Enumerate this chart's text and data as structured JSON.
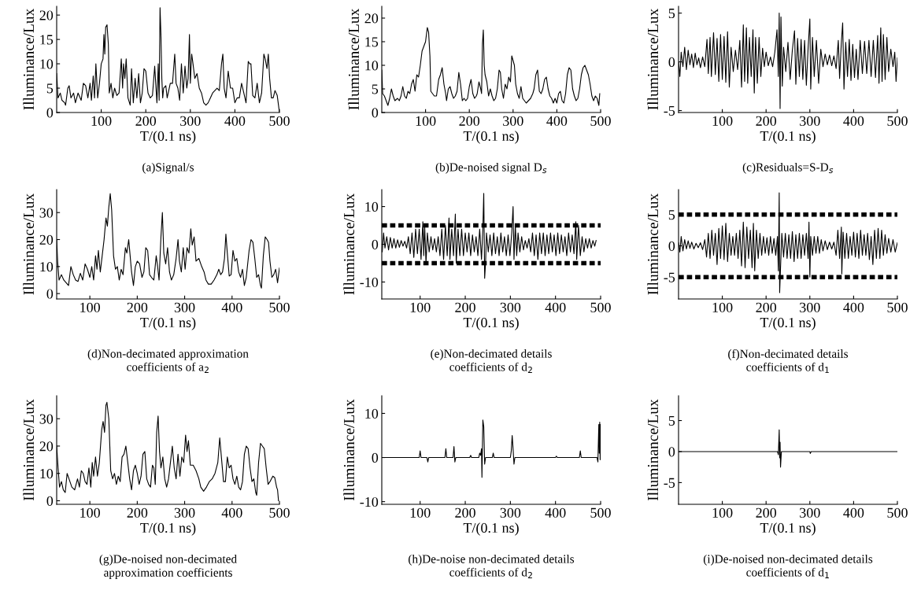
{
  "chart_data": [
    {
      "type": "line",
      "title": "(a)Signal/s",
      "xlabel": "T/(0.1 ns)",
      "ylabel": "Illuminance/Lux",
      "color": "#000000",
      "xlim": [
        0,
        500
      ],
      "ylim": [
        0,
        21.8
      ],
      "xticks": [
        100,
        200,
        300,
        400,
        500
      ],
      "yticks": [
        0,
        5,
        10,
        15,
        20
      ],
      "x": [
        0,
        3,
        8,
        12,
        18,
        20,
        25,
        28,
        32,
        38,
        42,
        48,
        55,
        60,
        65,
        70,
        75,
        78,
        82,
        85,
        88,
        92,
        96,
        100,
        104,
        106,
        108,
        110,
        113,
        116,
        118,
        122,
        126,
        130,
        135,
        140,
        145,
        148,
        150,
        153,
        156,
        160,
        165,
        168,
        172,
        176,
        180,
        184,
        188,
        192,
        196,
        200,
        205,
        210,
        215,
        220,
        225,
        228,
        230,
        232,
        234,
        236,
        238,
        240,
        245,
        248,
        255,
        260,
        265,
        268,
        272,
        276,
        280,
        284,
        288,
        292,
        295,
        298,
        300,
        303,
        306,
        310,
        315,
        320,
        325,
        330,
        335,
        340,
        345,
        350,
        355,
        360,
        365,
        370,
        373,
        376,
        380,
        385,
        390,
        395,
        400,
        405,
        410,
        415,
        420,
        425,
        430,
        433,
        436,
        440,
        445,
        450,
        455,
        460,
        465,
        468,
        472,
        475,
        478,
        482,
        486,
        490,
        495,
        500
      ],
      "values": [
        8,
        3,
        4,
        2.5,
        2,
        1.5,
        5,
        5.5,
        3,
        4,
        2,
        4,
        2.5,
        6,
        5.5,
        3,
        6,
        2.5,
        7.5,
        3,
        10,
        3,
        6,
        10,
        11,
        16,
        12,
        17.5,
        18,
        14,
        4,
        6,
        3,
        5,
        3.5,
        4,
        11,
        5,
        10,
        7,
        11,
        3,
        1.5,
        9,
        2,
        7,
        3,
        8,
        2,
        4,
        9,
        8.5,
        4,
        3,
        3.5,
        9.5,
        2,
        10,
        2.5,
        21.5,
        16,
        7,
        3,
        5,
        5.5,
        3,
        6,
        6,
        12,
        6,
        5,
        2.5,
        10,
        4,
        9.5,
        5,
        7,
        16,
        6,
        12,
        10,
        7,
        8,
        5,
        4,
        2,
        1.5,
        2,
        3,
        4,
        4.5,
        5,
        4.5,
        10,
        12,
        5,
        3,
        8.5,
        5,
        5,
        2,
        3,
        3,
        6,
        4,
        2,
        10.5,
        10,
        10,
        3.5,
        3,
        6,
        2,
        4,
        12,
        11,
        9,
        12,
        7,
        3,
        3,
        4.5,
        3.5,
        0
      ]
    },
    {
      "type": "line",
      "title": "(b)De-noised signal D$_{s}$",
      "xlabel": "T/(0.1 ns)",
      "ylabel": "Illuminance/Lux",
      "color": "#000000",
      "xlim": [
        0,
        500
      ],
      "ylim": [
        0,
        22.5
      ],
      "xticks": [
        100,
        200,
        300,
        400,
        500
      ],
      "yticks": [
        0,
        5,
        10,
        15,
        20
      ],
      "x": [
        0,
        2,
        6,
        10,
        14,
        18,
        22,
        26,
        30,
        36,
        40,
        44,
        48,
        52,
        56,
        60,
        64,
        68,
        72,
        76,
        80,
        84,
        88,
        92,
        96,
        100,
        104,
        107,
        110,
        112,
        116,
        120,
        125,
        130,
        134,
        138,
        142,
        146,
        148,
        152,
        156,
        160,
        164,
        168,
        172,
        176,
        180,
        184,
        188,
        192,
        196,
        200,
        204,
        208,
        212,
        216,
        218,
        222,
        226,
        228,
        230,
        232,
        234,
        236,
        240,
        244,
        248,
        252,
        256,
        260,
        264,
        268,
        271,
        274,
        278,
        282,
        286,
        290,
        294,
        297,
        300,
        303,
        306,
        310,
        314,
        318,
        322,
        326,
        330,
        335,
        340,
        345,
        348,
        352,
        356,
        360,
        364,
        368,
        372,
        376,
        380,
        384,
        388,
        392,
        396,
        400,
        404,
        408,
        412,
        416,
        420,
        424,
        428,
        432,
        436,
        440,
        444,
        448,
        452,
        456,
        460,
        464,
        468,
        472,
        476,
        480,
        484,
        488,
        492,
        496,
        498
      ],
      "values": [
        9,
        4,
        3.5,
        2.5,
        1.5,
        3,
        5,
        3.5,
        2.5,
        3,
        2.5,
        3.5,
        5.5,
        3.5,
        3,
        4.5,
        4,
        6,
        7,
        4.5,
        8,
        7.5,
        10,
        13,
        14,
        15,
        18,
        17,
        12,
        4.5,
        4,
        3.5,
        3.5,
        7,
        8,
        9.5,
        6,
        4,
        2.5,
        5,
        5.5,
        4,
        3,
        3.5,
        4.5,
        8.5,
        6,
        2.5,
        3,
        2.5,
        3,
        5.5,
        7,
        4,
        3,
        3.5,
        4,
        6.5,
        5,
        4,
        14.5,
        17.5,
        10,
        8,
        6.5,
        3.5,
        5,
        3.5,
        2.5,
        3,
        5,
        9,
        8.5,
        5,
        3,
        6,
        5,
        7.5,
        6.5,
        12,
        11,
        10,
        6,
        4,
        3,
        5.5,
        3,
        2.5,
        2,
        2.5,
        3,
        4,
        5,
        8,
        9,
        4.5,
        4,
        5,
        7,
        7.5,
        5,
        3.5,
        3,
        2,
        3,
        2,
        4,
        4.5,
        2.5,
        2,
        4,
        8,
        9.5,
        9,
        5,
        3.5,
        2.5,
        3,
        5,
        8,
        9.5,
        10,
        9,
        8,
        6,
        3.5,
        2.5,
        3.5,
        3,
        1.5,
        4
      ]
    },
    {
      "type": "line",
      "title": "(c)Residuals=S-D$_{s}$",
      "xlabel": "T/(0.1 ns)",
      "ylabel": "Illuminance/Lux",
      "color": "#000000",
      "xlim": [
        0,
        500
      ],
      "ylim": [
        -5.2,
        5.7
      ],
      "xticks": [
        100,
        200,
        300,
        400,
        500
      ],
      "yticks": [
        -5,
        0,
        5
      ],
      "x": [
        0,
        3,
        6,
        10,
        14,
        18,
        22,
        26,
        30,
        34,
        38,
        42,
        46,
        50,
        55,
        60,
        65,
        68,
        72,
        75,
        80,
        84,
        88,
        92,
        96,
        100,
        104,
        108,
        112,
        116,
        120,
        125,
        130,
        135,
        140,
        144,
        148,
        151,
        155,
        158,
        162,
        166,
        170,
        173,
        176,
        180,
        184,
        188,
        192,
        196,
        200,
        205,
        210,
        215,
        220,
        225,
        228,
        230,
        232,
        234,
        237,
        240,
        245,
        250,
        255,
        260,
        265,
        268,
        272,
        276,
        280,
        284,
        288,
        292,
        296,
        300,
        302,
        306,
        310,
        315,
        320,
        325,
        330,
        335,
        340,
        345,
        350,
        355,
        360,
        365,
        368,
        372,
        375,
        378,
        382,
        386,
        390,
        394,
        398,
        402,
        406,
        410,
        415,
        420,
        425,
        430,
        435,
        440,
        445,
        450,
        455,
        458,
        462,
        465,
        468,
        472,
        476,
        480,
        485,
        490,
        494,
        497,
        500
      ],
      "values": [
        0,
        -1.5,
        1,
        -0.5,
        1.5,
        -0.8,
        1.2,
        -0.3,
        0.8,
        -0.6,
        0.9,
        -0.3,
        0.4,
        -0.6,
        0.5,
        -0.5,
        2.3,
        -1.2,
        2.5,
        -1.5,
        3,
        -1.3,
        2.4,
        -2,
        2.8,
        -1.8,
        2.6,
        -2.1,
        3.1,
        -2.6,
        1.5,
        -1,
        1.2,
        -0.8,
        2.2,
        -2.6,
        3.8,
        -2,
        3.5,
        -2.2,
        2.5,
        -1.5,
        3.3,
        -3.2,
        2.5,
        -2.2,
        2.5,
        -1.5,
        1.4,
        -0.5,
        1,
        -0.4,
        0.5,
        -0.5,
        1,
        3.3,
        -1.5,
        5,
        -4.8,
        4.6,
        -2.5,
        1.5,
        -1,
        2,
        -1.8,
        1.2,
        3.2,
        -2.3,
        2.4,
        -1.5,
        2.3,
        -1.8,
        2.2,
        -2.4,
        1.4,
        4.4,
        -2.8,
        2.5,
        -1.5,
        2.2,
        -2.2,
        1.3,
        -0.5,
        0.8,
        -0.3,
        0.7,
        -0.4,
        0.6,
        -0.7,
        2.2,
        -1.7,
        2,
        4,
        -2.8,
        2,
        -1.5,
        2.3,
        -1.9,
        1.8,
        -1.6,
        1.3,
        -1.8,
        2.2,
        -1.2,
        2.1,
        -1.2,
        2.2,
        -1.5,
        2.2,
        -1.6,
        2.7,
        -2.2,
        3.5,
        -2,
        2.8,
        -1.8,
        2.5,
        -1,
        1.3,
        -0.5,
        1,
        -2,
        0.4
      ]
    },
    {
      "type": "line",
      "title": "(d)Non-decimated approximation\ncoefficients of a$_{2}$",
      "xlabel": "T/(0.1 ns)",
      "ylabel": "Illuminance/Lux",
      "color": "#000000",
      "xlim": [
        30,
        500
      ],
      "ylim": [
        -2,
        38.5
      ],
      "xticks": [
        100,
        200,
        300,
        400,
        500
      ],
      "yticks": [
        0,
        10,
        20,
        30
      ],
      "x": [
        30,
        32,
        35,
        40,
        45,
        50,
        55,
        60,
        65,
        70,
        75,
        80,
        85,
        90,
        95,
        100,
        104,
        108,
        112,
        115,
        118,
        122,
        126,
        130,
        134,
        137,
        140,
        143,
        146,
        150,
        154,
        158,
        162,
        166,
        170,
        175,
        178,
        182,
        185,
        188,
        192,
        196,
        200,
        205,
        210,
        214,
        218,
        222,
        226,
        230,
        235,
        240,
        243,
        246,
        250,
        253,
        256,
        260,
        264,
        268,
        272,
        277,
        282,
        286,
        289,
        293,
        297,
        301,
        305,
        309,
        313,
        316,
        320,
        324,
        330,
        336,
        341,
        345,
        350,
        356,
        362,
        368,
        372,
        376,
        380,
        384,
        387,
        390,
        394,
        398,
        402,
        406,
        410,
        414,
        418,
        422,
        426,
        430,
        436,
        440,
        444,
        448,
        452,
        456,
        460,
        462,
        466,
        470,
        474,
        477,
        480,
        484,
        488,
        492,
        496,
        500
      ],
      "values": [
        20,
        12,
        5,
        7,
        5,
        4,
        3,
        10,
        7,
        5,
        4.5,
        7.5,
        5,
        11,
        9,
        6,
        10,
        5,
        14,
        9,
        16,
        8,
        14,
        20,
        28,
        25,
        32,
        37,
        31,
        14,
        9,
        10,
        5,
        9,
        7,
        17,
        15,
        20,
        14,
        8,
        3,
        10,
        12,
        11,
        6,
        8,
        17,
        16,
        7,
        6,
        5,
        14,
        10,
        5,
        21,
        30,
        15,
        11,
        17,
        8,
        5,
        7,
        13,
        20,
        12,
        8,
        17,
        9,
        17,
        15,
        24,
        18,
        21,
        12,
        13,
        10,
        8,
        5,
        3.5,
        3.5,
        5,
        7,
        9,
        7,
        8,
        13,
        22,
        15,
        6.5,
        7,
        16,
        12,
        13,
        8,
        6,
        9,
        3,
        6,
        16,
        20,
        19,
        13,
        6,
        7,
        3,
        2,
        14,
        21,
        20,
        19,
        12,
        6,
        7,
        9,
        4,
        9.5
      ]
    },
    {
      "type": "line",
      "title": "(e)Non-decimated details\ncoefficients of d$_{2}$",
      "xlabel": "T/(0.1 ns)",
      "ylabel": "Illuminance/Lux",
      "color": "#000000",
      "xlim": [
        15,
        500
      ],
      "ylim": [
        -14.5,
        14.5
      ],
      "xticks": [
        100,
        200,
        300,
        400,
        500
      ],
      "yticks": [
        -10,
        0,
        10
      ],
      "ref_lines": [
        {
          "axis": "y",
          "value": 5,
          "color": "#000000",
          "line_style": "dashed"
        },
        {
          "axis": "y",
          "value": -5,
          "color": "#000000",
          "line_style": "dashed"
        }
      ],
      "x": [
        16,
        19,
        22,
        26,
        30,
        34,
        38,
        42,
        46,
        50,
        54,
        58,
        62,
        66,
        70,
        74,
        78,
        82,
        86,
        90,
        94,
        98,
        102,
        106,
        108,
        110,
        113,
        116,
        120,
        124,
        128,
        132,
        136,
        140,
        144,
        148,
        152,
        156,
        160,
        164,
        166,
        170,
        174,
        178,
        180,
        184,
        188,
        192,
        196,
        200,
        204,
        208,
        212,
        216,
        220,
        224,
        228,
        232,
        236,
        239,
        241,
        243,
        245,
        247,
        251,
        255,
        259,
        263,
        267,
        271,
        275,
        279,
        283,
        287,
        291,
        295,
        299,
        303,
        306,
        308,
        311,
        314,
        317,
        321,
        325,
        329,
        333,
        337,
        341,
        345,
        349,
        353,
        357,
        361,
        365,
        369,
        373,
        377,
        381,
        385,
        389,
        393,
        397,
        401,
        405,
        409,
        413,
        417,
        421,
        425,
        429,
        433,
        437,
        441,
        445,
        447,
        451,
        455,
        459,
        463,
        467,
        471,
        475,
        479,
        483,
        487,
        490
      ],
      "values": [
        -2,
        3,
        -1,
        2,
        -1.5,
        1.8,
        -1,
        1.5,
        -1,
        1.2,
        -0.8,
        1,
        -0.5,
        0.8,
        -1,
        2,
        -2.5,
        3,
        -3.5,
        4,
        -2.5,
        4,
        -4,
        6,
        -3,
        5,
        -5,
        3,
        -2,
        2,
        -1.5,
        1.5,
        -2,
        2,
        -3,
        4,
        -4,
        5,
        -3,
        7,
        -4,
        4,
        -3,
        8,
        -5,
        4,
        -3,
        4,
        -3,
        3,
        -2,
        3,
        -3,
        2.5,
        -2,
        2,
        -3,
        4,
        -4,
        4,
        13.5,
        -9,
        -5,
        3,
        -2,
        2.5,
        -3,
        3,
        -2.5,
        2,
        -3,
        3,
        -2,
        2,
        -3,
        2.5,
        -3,
        3,
        10,
        -4,
        5,
        -3,
        3,
        -2,
        2,
        -1.5,
        1,
        -1,
        1.5,
        -2,
        3,
        -3,
        2.5,
        -4,
        3,
        -2.5,
        3,
        -3,
        2.5,
        -2.5,
        3,
        -2,
        2.5,
        -3,
        3,
        -2.5,
        2.5,
        -2,
        2,
        -3,
        3,
        -2,
        2.5,
        -2.5,
        6,
        -4,
        5,
        -3,
        2,
        -2,
        1.5,
        -1,
        1.5,
        -1,
        1,
        -0.5,
        1
      ]
    },
    {
      "type": "line",
      "title": "(f)Non-decimated details\ncoefficients of d$_{1}$",
      "xlabel": "T/(0.1 ns)",
      "ylabel": "Illuminance/Lux",
      "color": "#000000",
      "xlim": [
        0,
        500
      ],
      "ylim": [
        -8.5,
        9
      ],
      "xticks": [
        100,
        200,
        300,
        400,
        500
      ],
      "yticks": [
        -5,
        0,
        5
      ],
      "ref_lines": [
        {
          "axis": "y",
          "value": 5,
          "color": "#000000",
          "line_style": "dashed"
        },
        {
          "axis": "y",
          "value": -5,
          "color": "#000000",
          "line_style": "dashed"
        }
      ],
      "x": [
        0,
        3,
        6,
        10,
        14,
        18,
        22,
        26,
        30,
        35,
        40,
        45,
        50,
        55,
        60,
        64,
        68,
        72,
        76,
        80,
        84,
        88,
        92,
        96,
        100,
        104,
        108,
        112,
        116,
        120,
        124,
        128,
        132,
        136,
        140,
        144,
        148,
        152,
        156,
        160,
        164,
        168,
        171,
        174,
        178,
        182,
        186,
        190,
        194,
        198,
        202,
        206,
        210,
        214,
        218,
        222,
        226,
        228,
        230,
        231,
        233,
        236,
        240,
        244,
        248,
        252,
        256,
        260,
        264,
        268,
        272,
        276,
        280,
        284,
        288,
        292,
        296,
        298,
        300,
        302,
        306,
        310,
        314,
        318,
        322,
        326,
        330,
        335,
        340,
        345,
        350,
        355,
        360,
        364,
        368,
        372,
        373,
        376,
        380,
        384,
        388,
        392,
        396,
        400,
        404,
        408,
        412,
        416,
        420,
        424,
        428,
        432,
        436,
        440,
        444,
        448,
        452,
        456,
        460,
        464,
        468,
        472,
        476,
        480,
        485,
        490,
        495,
        500
      ],
      "values": [
        0.5,
        -1,
        1.5,
        -0.8,
        1,
        -0.5,
        0.8,
        -0.4,
        0.6,
        -0.5,
        0.4,
        -0.3,
        0.5,
        -0.6,
        1,
        -1.8,
        2,
        -2,
        2.5,
        -1.5,
        2,
        -3,
        2.8,
        -2,
        3.2,
        -2.2,
        3.6,
        -2.5,
        2,
        -1.5,
        1.5,
        -1.5,
        2,
        -2,
        2.5,
        -3.2,
        3.8,
        -3.5,
        3,
        -2,
        2.5,
        -3.5,
        3.6,
        -4,
        2.5,
        -2,
        2,
        -1.5,
        1.5,
        -1.2,
        1.3,
        -1.5,
        1.5,
        -1.2,
        1.2,
        -1.5,
        1.5,
        -4,
        8.5,
        -7.5,
        -3.5,
        2,
        -1.8,
        2,
        -2,
        1.8,
        -2,
        2.3,
        -2.5,
        1.8,
        -2,
        2,
        -2,
        1.8,
        -1.5,
        2,
        -2,
        3.8,
        -5,
        1.5,
        -1.5,
        1.5,
        -1.2,
        1.5,
        -1.2,
        1,
        -0.8,
        0.8,
        -0.6,
        0.6,
        -0.5,
        0.6,
        -1.5,
        2.5,
        -2,
        3,
        -4.5,
        2.2,
        -2,
        2,
        -2,
        1.5,
        -1.5,
        2.2,
        -1.8,
        2,
        -2,
        2.5,
        -1.5,
        1.8,
        -1.5,
        2,
        -2.2,
        1.5,
        -3,
        2.5,
        -2,
        2.8,
        -2,
        2.5,
        -1.5,
        1.8,
        -1.2,
        1.2,
        -1,
        1,
        -1,
        0.5
      ]
    },
    {
      "type": "line",
      "title": "(g)De-noised non-decimated\napproximation coefficients",
      "xlabel": "T/(0.1 ns)",
      "ylabel": "Illuminance/Lux",
      "color": "#000000",
      "xlim": [
        30,
        500
      ],
      "ylim": [
        -1.3,
        38.4
      ],
      "xticks": [
        100,
        200,
        300,
        400,
        500
      ],
      "yticks": [
        0,
        10,
        20,
        30
      ],
      "x": [
        30,
        33,
        36,
        40,
        44,
        48,
        52,
        56,
        62,
        68,
        74,
        78,
        82,
        86,
        90,
        94,
        98,
        102,
        105,
        108,
        112,
        116,
        120,
        125,
        128,
        131,
        134,
        136,
        140,
        144,
        148,
        152,
        156,
        160,
        164,
        168,
        172,
        176,
        180,
        184,
        188,
        192,
        196,
        200,
        204,
        208,
        212,
        216,
        220,
        224,
        228,
        232,
        235,
        238,
        241,
        244,
        247,
        250,
        254,
        258,
        262,
        266,
        270,
        274,
        278,
        282,
        286,
        290,
        294,
        298,
        302,
        305,
        308,
        312,
        318,
        324,
        330,
        334,
        340,
        346,
        352,
        358,
        364,
        370,
        374,
        378,
        382,
        386,
        390,
        394,
        398,
        402,
        406,
        410,
        414,
        418,
        422,
        426,
        430,
        434,
        438,
        442,
        446,
        450,
        452,
        456,
        460,
        464,
        468,
        472,
        476,
        480,
        486,
        490,
        494,
        496,
        498
      ],
      "values": [
        20,
        12,
        5,
        7,
        4,
        3,
        10,
        8,
        5,
        4,
        8,
        5,
        11,
        10,
        7,
        6,
        12,
        5,
        14,
        9,
        16,
        9,
        14,
        26,
        29,
        25,
        35,
        36,
        30,
        11,
        8,
        10,
        6,
        9,
        7,
        16,
        17,
        20,
        14,
        8,
        4,
        11,
        13,
        10,
        6,
        9,
        17,
        18,
        8,
        6,
        5,
        13,
        12,
        6,
        25,
        31,
        18,
        12,
        16,
        8,
        5,
        8,
        14,
        20,
        12,
        8,
        17,
        9,
        16,
        14,
        24,
        18,
        22,
        13,
        13,
        11,
        8,
        5,
        3.5,
        5,
        7,
        8,
        10,
        14,
        23,
        15,
        7,
        7,
        16,
        12,
        13,
        8,
        6,
        9,
        5,
        4,
        7,
        17,
        20,
        19,
        12,
        7,
        8,
        3,
        2,
        14,
        21,
        20,
        19,
        12,
        6,
        7,
        9,
        8.5,
        5,
        4,
        0
      ]
    },
    {
      "type": "line",
      "title": "(h)De-noise non-decimated details\ncoefficients of d$_{2}$",
      "xlabel": "T/(0.1 ns)",
      "ylabel": "Illuminance/Lux",
      "color": "#000000",
      "xlim": [
        15,
        500
      ],
      "ylim": [
        -10.6,
        14
      ],
      "xticks": [
        100,
        200,
        300,
        400,
        500
      ],
      "yticks": [
        -10,
        0,
        10
      ],
      "x": [
        15,
        98,
        100,
        102,
        115,
        117,
        119,
        155,
        157,
        159,
        173,
        175,
        177,
        179,
        210,
        212,
        214,
        230,
        232,
        234,
        236,
        237,
        239,
        241,
        243,
        245,
        260,
        262,
        264,
        300,
        302,
        304,
        306,
        308,
        310,
        400,
        402,
        404,
        453,
        455,
        457,
        492,
        494,
        496,
        497,
        498,
        499,
        500
      ],
      "values": [
        0,
        0,
        1.5,
        0,
        0,
        -1,
        0,
        0,
        2,
        0,
        0,
        2.5,
        -1,
        0,
        0,
        0.5,
        0,
        0,
        1,
        0.5,
        2,
        -4.5,
        8.5,
        7,
        -1.5,
        0,
        0,
        1,
        0,
        0,
        1.5,
        5,
        2,
        -1.5,
        0,
        0,
        0.3,
        0,
        0,
        1.5,
        0,
        0,
        -1,
        7.5,
        1,
        8,
        -0.5,
        7.5
      ]
    },
    {
      "type": "line",
      "title": "(i)De-noised non-decimated details\ncoefficients of d$_{1}$",
      "xlabel": "T/(0.1 ns)",
      "ylabel": "Illuminance/Lux",
      "color": "#000000",
      "xlim": [
        0,
        500
      ],
      "ylim": [
        -8.5,
        9
      ],
      "xticks": [
        100,
        200,
        300,
        400,
        500
      ],
      "yticks": [
        -5,
        0,
        5
      ],
      "x": [
        0,
        226,
        228,
        230,
        231,
        232,
        233,
        235,
        300,
        301,
        303,
        500
      ],
      "values": [
        0,
        0,
        -0.5,
        3.5,
        -1,
        1.5,
        -2.5,
        0,
        0,
        -0.3,
        0,
        0
      ]
    }
  ]
}
